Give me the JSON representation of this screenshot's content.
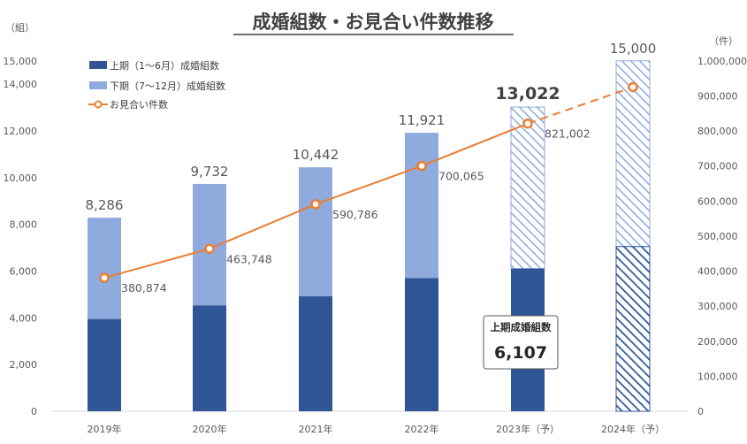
{
  "chart_data": {
    "type": "bar",
    "title": "成婚組数・お見合い件数推移",
    "ylabel_left": "（組）",
    "ylabel_right": "（件）",
    "categories": [
      "2019年",
      "2020年",
      "2021年",
      "2022年",
      "2023年（予）",
      "2024年（予）"
    ],
    "left_ticks": [
      "0",
      "2,000",
      "4,000",
      "6,000",
      "8,000",
      "10,000",
      "12,000",
      "14,000",
      "15,000"
    ],
    "left_tick_values": [
      0,
      2000,
      4000,
      6000,
      8000,
      10000,
      12000,
      14000,
      15000
    ],
    "right_ticks": [
      "0",
      "100,000",
      "200,000",
      "300,000",
      "400,000",
      "500,000",
      "600,000",
      "700,000",
      "800,000",
      "900,000",
      "1,000,000"
    ],
    "right_tick_values": [
      0,
      100000,
      200000,
      300000,
      400000,
      500000,
      600000,
      700000,
      800000,
      900000,
      1000000
    ],
    "ylim_left": [
      0,
      15900
    ],
    "ylim_right": [
      0,
      1060000
    ],
    "series": [
      {
        "name": "上期（1～6月）成婚組数",
        "values": [
          3950,
          4530,
          4920,
          5700,
          6107,
          7050
        ],
        "color": "#2f5597"
      },
      {
        "name": "下期（7～12月）成婚組数",
        "values": [
          4336,
          5202,
          5522,
          6221,
          6915,
          7950
        ],
        "color": "#8faadc"
      },
      {
        "name": "お見合い件数",
        "values": [
          380874,
          463748,
          590786,
          700065,
          821002,
          925000
        ],
        "color": "#ed7d31"
      }
    ],
    "total_labels": [
      "8,286",
      "9,732",
      "10,442",
      "11,921",
      "13,022",
      "15,000"
    ],
    "line_labels": [
      "380,874",
      "463,748",
      "590,786",
      "700,065",
      "821,002"
    ],
    "projected_from_index": 4,
    "callout": {
      "title": "上期成婚組数",
      "value": "6,107"
    }
  }
}
